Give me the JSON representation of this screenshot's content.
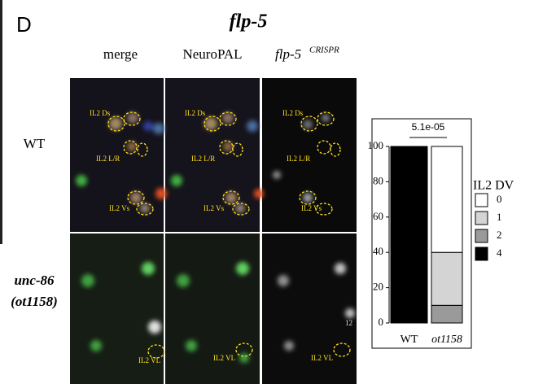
{
  "panel": {
    "letter": "D",
    "title": "flp-5",
    "columns": [
      "merge",
      "NeuroPAL",
      "flp-5"
    ],
    "column_superscript": "CRISPR",
    "rows": [
      "WT",
      "unc-86",
      "(ot1158)"
    ],
    "image_labels": [
      "IL2 Ds",
      "IL2 L/R",
      "IL2 Vs",
      "IL2 VL",
      "12"
    ]
  },
  "chart_data": {
    "type": "stacked-bar",
    "categories": [
      "WT",
      "ot1158"
    ],
    "series": [
      {
        "name": "4",
        "color": "#000000",
        "values": [
          100,
          0
        ]
      },
      {
        "name": "2",
        "color": "#9a9a9a",
        "values": [
          0,
          10
        ]
      },
      {
        "name": "1",
        "color": "#d4d4d4",
        "values": [
          0,
          30
        ]
      },
      {
        "name": "0",
        "color": "#ffffff",
        "values": [
          0,
          60
        ]
      }
    ],
    "legend_title": "IL2 DV",
    "annotation": "5.1e-05",
    "ylim": [
      0,
      100
    ],
    "yticks": [
      0,
      20,
      40,
      60,
      80,
      100
    ]
  }
}
